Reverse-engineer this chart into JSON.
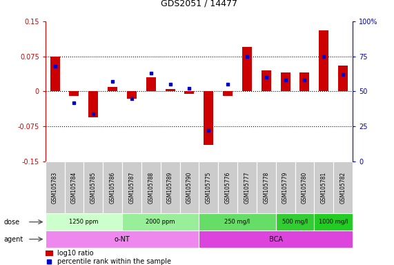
{
  "title": "GDS2051 / 14477",
  "samples": [
    "GSM105783",
    "GSM105784",
    "GSM105785",
    "GSM105786",
    "GSM105787",
    "GSM105788",
    "GSM105789",
    "GSM105790",
    "GSM105775",
    "GSM105776",
    "GSM105777",
    "GSM105778",
    "GSM105779",
    "GSM105780",
    "GSM105781",
    "GSM105782"
  ],
  "log10_ratio": [
    0.075,
    -0.01,
    -0.055,
    0.01,
    -0.015,
    0.03,
    0.005,
    -0.005,
    -0.115,
    -0.01,
    0.095,
    0.045,
    0.04,
    0.04,
    0.13,
    0.055
  ],
  "percentile_rank": [
    68,
    42,
    34,
    57,
    45,
    63,
    55,
    52,
    22,
    55,
    75,
    60,
    58,
    58,
    75,
    62
  ],
  "ylim": [
    -0.15,
    0.15
  ],
  "yticks_left": [
    -0.15,
    -0.075,
    0,
    0.075,
    0.15
  ],
  "yticks_right": [
    0,
    25,
    50,
    75,
    100
  ],
  "hlines": [
    0.075,
    0,
    -0.075
  ],
  "bar_color": "#cc0000",
  "dot_color": "#0000cc",
  "dose_groups": [
    {
      "label": "1250 ppm",
      "start": 0,
      "end": 4,
      "color": "#ccffcc"
    },
    {
      "label": "2000 ppm",
      "start": 4,
      "end": 8,
      "color": "#99ee99"
    },
    {
      "label": "250 mg/l",
      "start": 8,
      "end": 12,
      "color": "#66dd66"
    },
    {
      "label": "500 mg/l",
      "start": 12,
      "end": 14,
      "color": "#33cc33"
    },
    {
      "label": "1000 mg/l",
      "start": 14,
      "end": 16,
      "color": "#22cc22"
    }
  ],
  "agent_groups": [
    {
      "label": "o-NT",
      "start": 0,
      "end": 8,
      "color": "#ee88ee"
    },
    {
      "label": "BCA",
      "start": 8,
      "end": 16,
      "color": "#dd44dd"
    }
  ],
  "legend_items": [
    {
      "label": "log10 ratio",
      "color": "#cc0000"
    },
    {
      "label": "percentile rank within the sample",
      "color": "#0000cc"
    }
  ],
  "bg_color": "#ffffff",
  "left_tick_color": "#cc0000",
  "right_tick_color": "#0000bb",
  "sample_bg_color": "#cccccc",
  "sample_border_color": "#ffffff"
}
